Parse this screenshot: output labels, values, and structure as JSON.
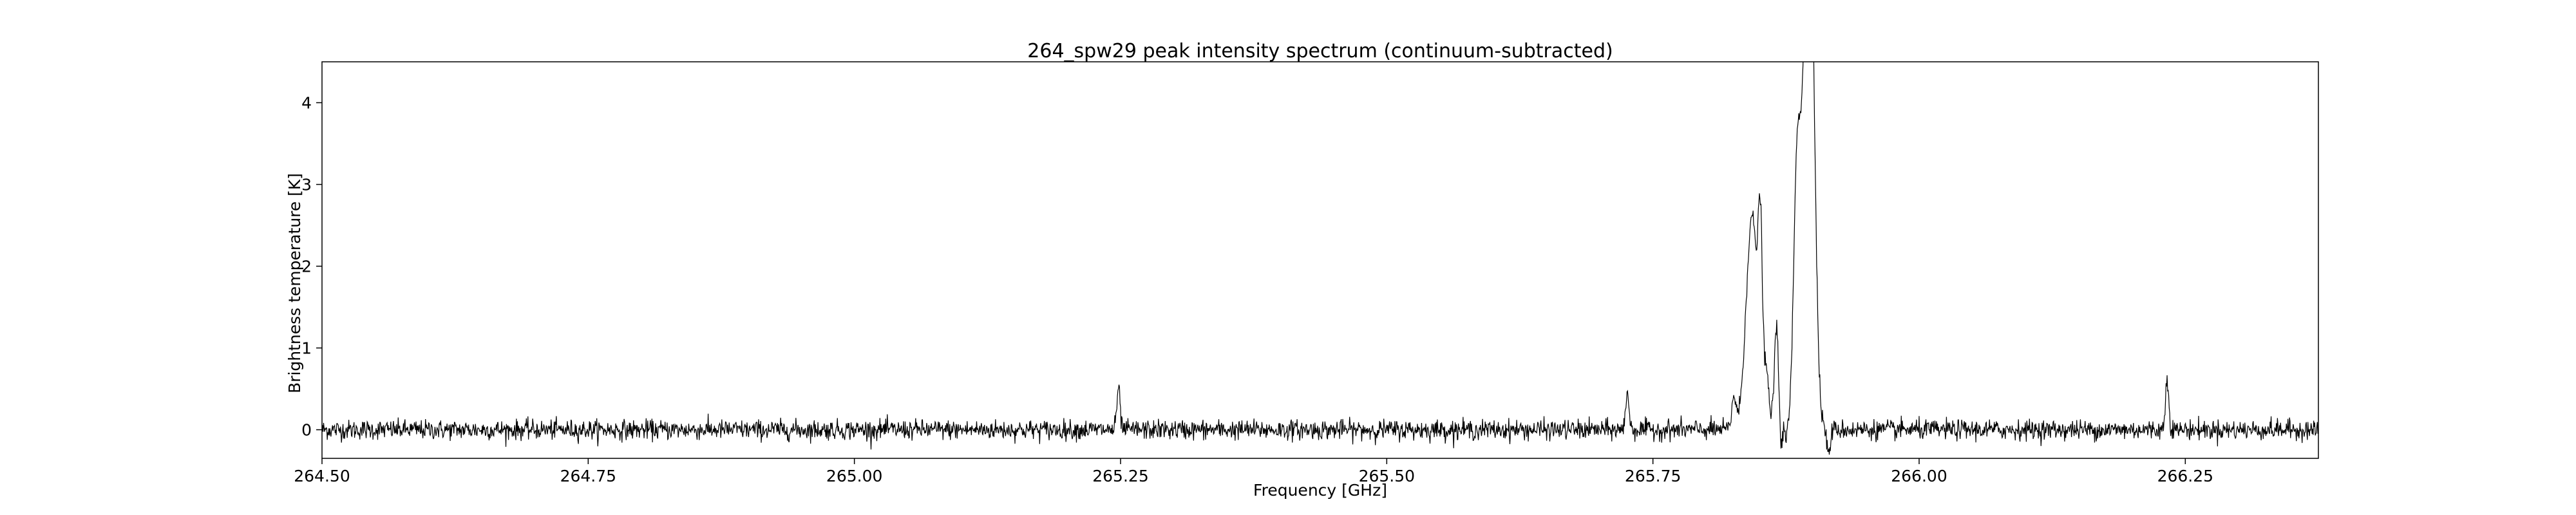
{
  "chart_data": {
    "type": "line",
    "title": "264_spw29 peak intensity spectrum (continuum-subtracted)",
    "xlabel": "Frequency [GHz]",
    "ylabel": "Brightness temperature [K]",
    "xlim": [
      264.5,
      266.375
    ],
    "ylim": [
      -0.35,
      4.5
    ],
    "x_ticks": [
      264.5,
      264.75,
      265.0,
      265.25,
      265.5,
      265.75,
      266.0,
      266.25
    ],
    "x_tick_labels": [
      "264.50",
      "264.75",
      "265.00",
      "265.25",
      "265.50",
      "265.75",
      "266.00",
      "266.25"
    ],
    "y_ticks": [
      0,
      1,
      2,
      3,
      4
    ],
    "y_tick_labels": [
      "0",
      "1",
      "2",
      "3",
      "4"
    ],
    "grid": false,
    "line_color": "#000000",
    "noise_rms": 0.06,
    "baseline": 0.0,
    "peaks": [
      {
        "center": 265.248,
        "amplitude": 0.5,
        "width": 0.0015
      },
      {
        "center": 265.726,
        "amplitude": 0.48,
        "width": 0.0015
      },
      {
        "center": 265.826,
        "amplitude": 0.4,
        "width": 0.002
      },
      {
        "center": 265.843,
        "amplitude": 2.6,
        "width": 0.0055
      },
      {
        "center": 265.851,
        "amplitude": 1.9,
        "width": 0.002
      },
      {
        "center": 265.857,
        "amplitude": 0.6,
        "width": 0.002
      },
      {
        "center": 265.866,
        "amplitude": 1.2,
        "width": 0.0022
      },
      {
        "center": 265.885,
        "amplitude": 2.3,
        "width": 0.003
      },
      {
        "center": 265.893,
        "amplitude": 3.6,
        "width": 0.0055
      },
      {
        "center": 265.896,
        "amplitude": 3.2,
        "width": 0.003
      },
      {
        "center": 265.9,
        "amplitude": 2.6,
        "width": 0.0035
      },
      {
        "center": 266.233,
        "amplitude": 0.65,
        "width": 0.0015
      }
    ],
    "dips": [
      {
        "center": 265.87,
        "amplitude": -0.3,
        "width": 0.0012
      },
      {
        "center": 265.875,
        "amplitude": -0.15,
        "width": 0.0012
      },
      {
        "center": 265.915,
        "amplitude": -0.3,
        "width": 0.0015
      }
    ]
  }
}
